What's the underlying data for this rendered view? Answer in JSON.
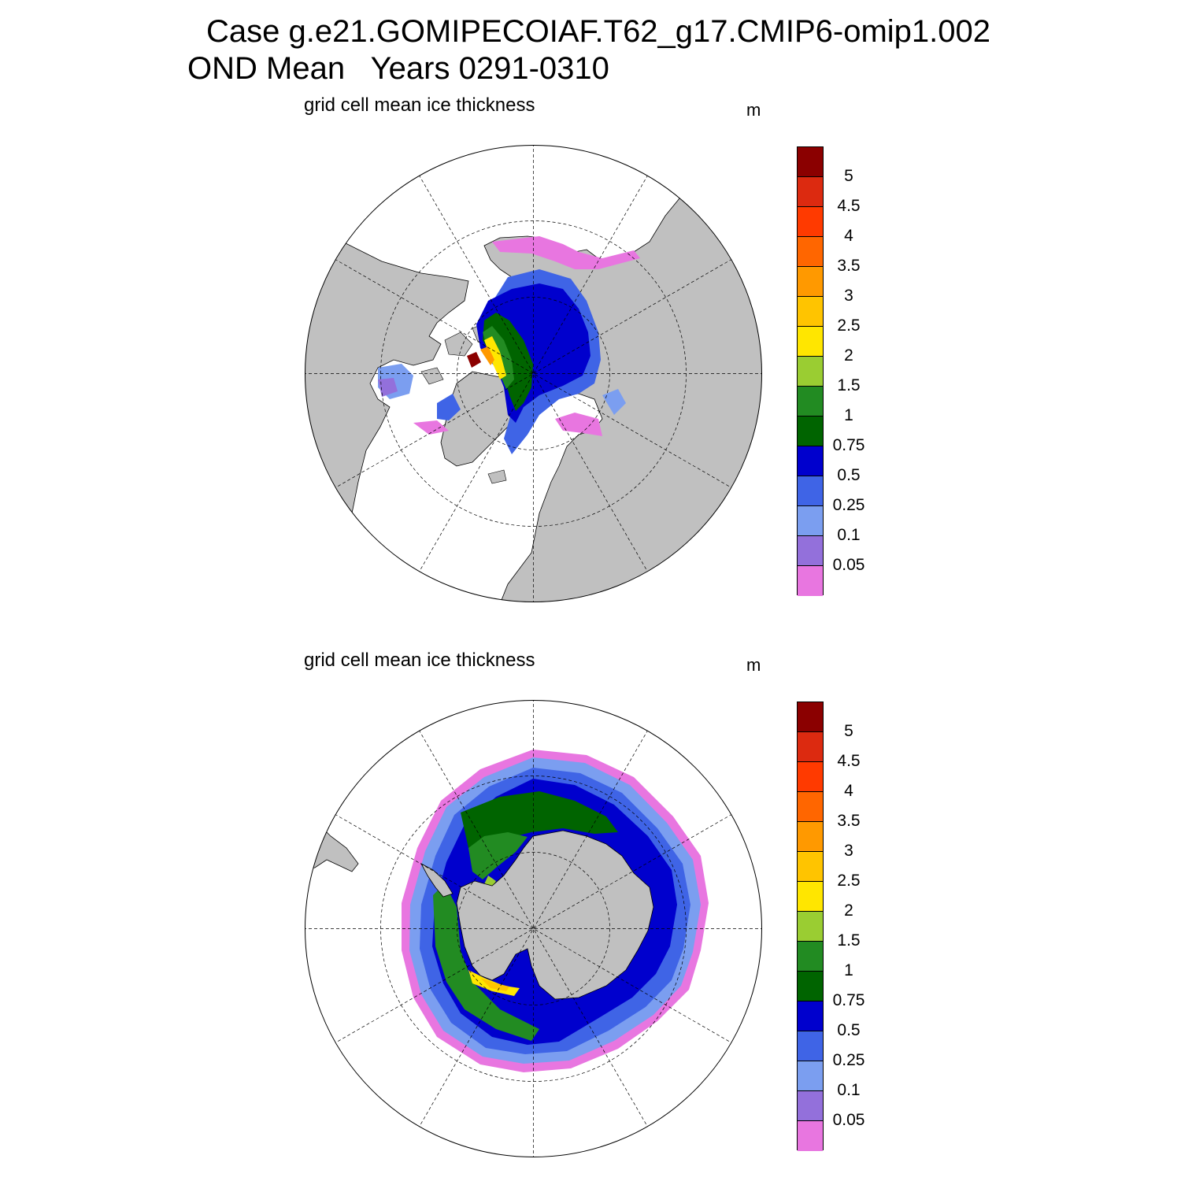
{
  "title": {
    "line1": "Case g.e21.GOMIPECOIAF.T62_g17.CMIP6-omip1.002",
    "line2": "OND Mean   Years 0291-0310"
  },
  "panels": [
    {
      "hemisphere": "north",
      "subtitle": "grid cell mean ice thickness",
      "units": "m"
    },
    {
      "hemisphere": "south",
      "subtitle": "grid cell mean ice thickness",
      "units": "m"
    }
  ],
  "colorbar": {
    "levels": [
      "5",
      "4.5",
      "4",
      "3.5",
      "3",
      "2.5",
      "2",
      "1.5",
      "1",
      "0.75",
      "0.5",
      "0.25",
      "0.1",
      "0.05"
    ],
    "colors": [
      "#8b0000",
      "#dc2a10",
      "#ff3a00",
      "#ff6600",
      "#ff9900",
      "#ffc400",
      "#ffe600",
      "#9acd32",
      "#228b22",
      "#006400",
      "#0000cd",
      "#3f64e6",
      "#7b9ef0",
      "#9370db",
      "#e876e0"
    ]
  },
  "map_colors": {
    "land": "#c0c0c0",
    "ocean": "#ffffff"
  }
}
